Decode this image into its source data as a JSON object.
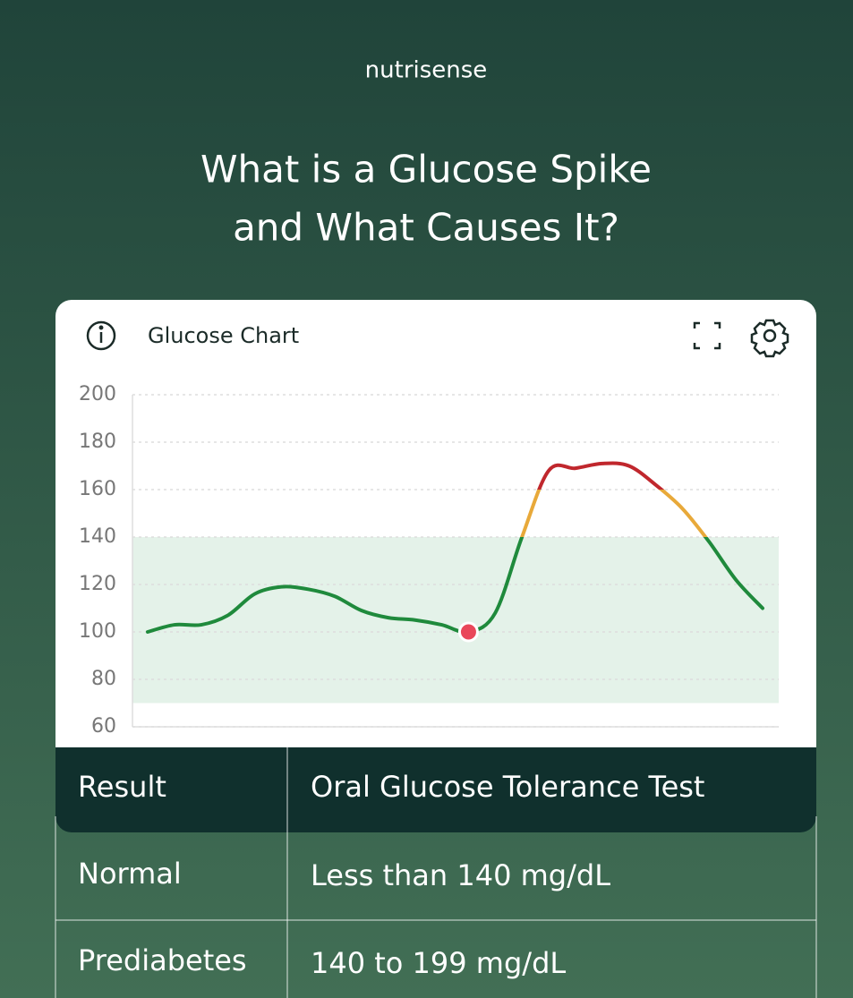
{
  "header": {
    "brand": "nutrisense",
    "title_lines": [
      "What is a Glucose Spike",
      "and What Causes It?"
    ]
  },
  "card": {
    "title": "Glucose Chart"
  },
  "chart_data": {
    "type": "line",
    "categories": [
      null,
      null,
      null,
      null,
      null,
      null,
      null,
      null,
      null,
      null,
      null,
      null,
      null,
      null,
      null,
      null,
      null,
      null,
      null,
      null,
      null,
      null,
      null,
      null
    ],
    "values": [
      100,
      103,
      103,
      107,
      116,
      119,
      118,
      115,
      109,
      106,
      105,
      103,
      100,
      108,
      140,
      168,
      169,
      171,
      170,
      162,
      152,
      138,
      122,
      110
    ],
    "ylim": [
      60,
      200
    ],
    "yticks": [
      60,
      80,
      100,
      120,
      140,
      160,
      180,
      200
    ],
    "grid": true,
    "target_range": [
      70,
      140
    ],
    "target_color": "#e4f2e9",
    "thresholds": [
      140,
      160
    ],
    "colors": [
      "#1f8a3c",
      "#e8a93a",
      "#c0272d"
    ],
    "marker": {
      "index": 12,
      "color": "#e9475a"
    }
  },
  "table": {
    "header": [
      "Result",
      "Oral Glucose Tolerance Test"
    ],
    "rows": [
      [
        "Normal",
        "Less than 140 mg/dL"
      ],
      [
        "Prediabetes",
        "140 to 199 mg/dL"
      ]
    ]
  }
}
